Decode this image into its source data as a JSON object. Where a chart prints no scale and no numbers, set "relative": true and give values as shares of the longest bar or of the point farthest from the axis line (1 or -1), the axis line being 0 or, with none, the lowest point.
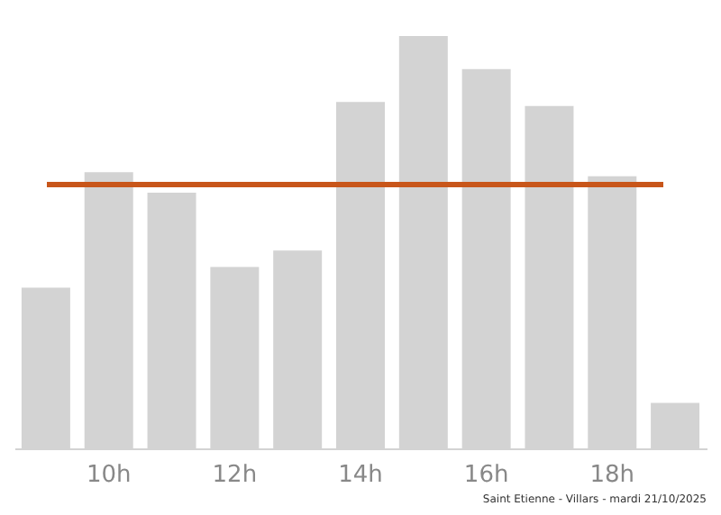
{
  "chart_data": {
    "type": "bar",
    "relative": true,
    "categories": [
      null,
      "10h",
      null,
      "12h",
      null,
      "14h",
      null,
      "16h",
      null,
      "18h",
      null
    ],
    "values": [
      0.39,
      0.67,
      0.62,
      0.44,
      0.48,
      0.84,
      1,
      0.92,
      0.83,
      0.66,
      0.11
    ],
    "color": "#d3d3d3",
    "ref_lines": [
      {
        "axis": "y",
        "value": 0.64,
        "color": "#c8561a"
      }
    ],
    "annotations": [
      "Saint Etienne - Villars - mardi 21/10/2025"
    ],
    "grid": false
  }
}
